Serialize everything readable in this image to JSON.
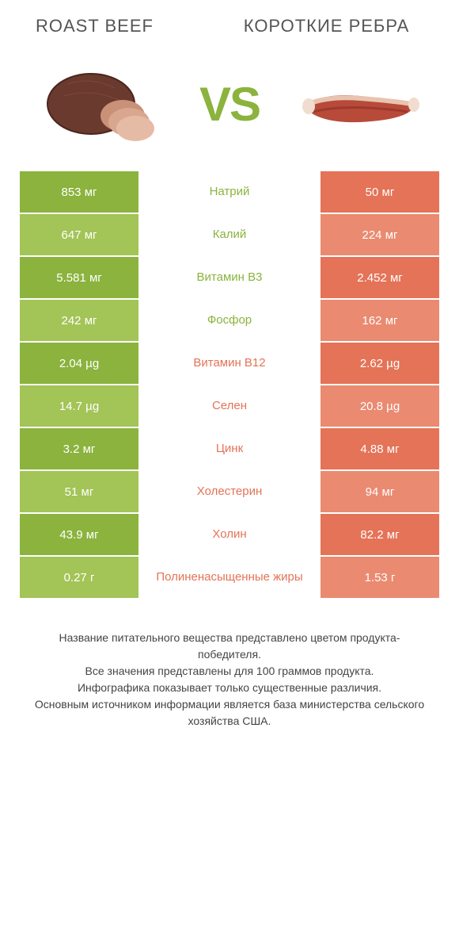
{
  "colors": {
    "green_dark": "#8bb33d",
    "green_light": "#a3c456",
    "coral_dark": "#e47357",
    "coral_light": "#ea8a70",
    "text_green": "#8bb33d",
    "text_coral": "#e47357"
  },
  "header": {
    "left_title": "ROAST BEEF",
    "right_title": "КОРОТКИЕ РЕБРА",
    "vs": "VS"
  },
  "rows": [
    {
      "left": "853 мг",
      "mid": "Натрий",
      "right": "50 мг",
      "winner": "left"
    },
    {
      "left": "647 мг",
      "mid": "Калий",
      "right": "224 мг",
      "winner": "left"
    },
    {
      "left": "5.581 мг",
      "mid": "Витамин B3",
      "right": "2.452 мг",
      "winner": "left"
    },
    {
      "left": "242 мг",
      "mid": "Фосфор",
      "right": "162 мг",
      "winner": "left"
    },
    {
      "left": "2.04 µg",
      "mid": "Витамин B12",
      "right": "2.62 µg",
      "winner": "right"
    },
    {
      "left": "14.7 µg",
      "mid": "Селен",
      "right": "20.8 µg",
      "winner": "right"
    },
    {
      "left": "3.2 мг",
      "mid": "Цинк",
      "right": "4.88 мг",
      "winner": "right"
    },
    {
      "left": "51 мг",
      "mid": "Холестерин",
      "right": "94 мг",
      "winner": "right"
    },
    {
      "left": "43.9 мг",
      "mid": "Холин",
      "right": "82.2 мг",
      "winner": "right"
    },
    {
      "left": "0.27 г",
      "mid": "Полиненасыщенные жиры",
      "right": "1.53 г",
      "winner": "right"
    }
  ],
  "footer": {
    "line1": "Название питательного вещества представлено цветом продукта-победителя.",
    "line2": "Все значения представлены для 100 граммов продукта.",
    "line3": "Инфографика показывает только существенные различия.",
    "line4": "Основным источником информации является база министерства сельского хозяйства США."
  }
}
